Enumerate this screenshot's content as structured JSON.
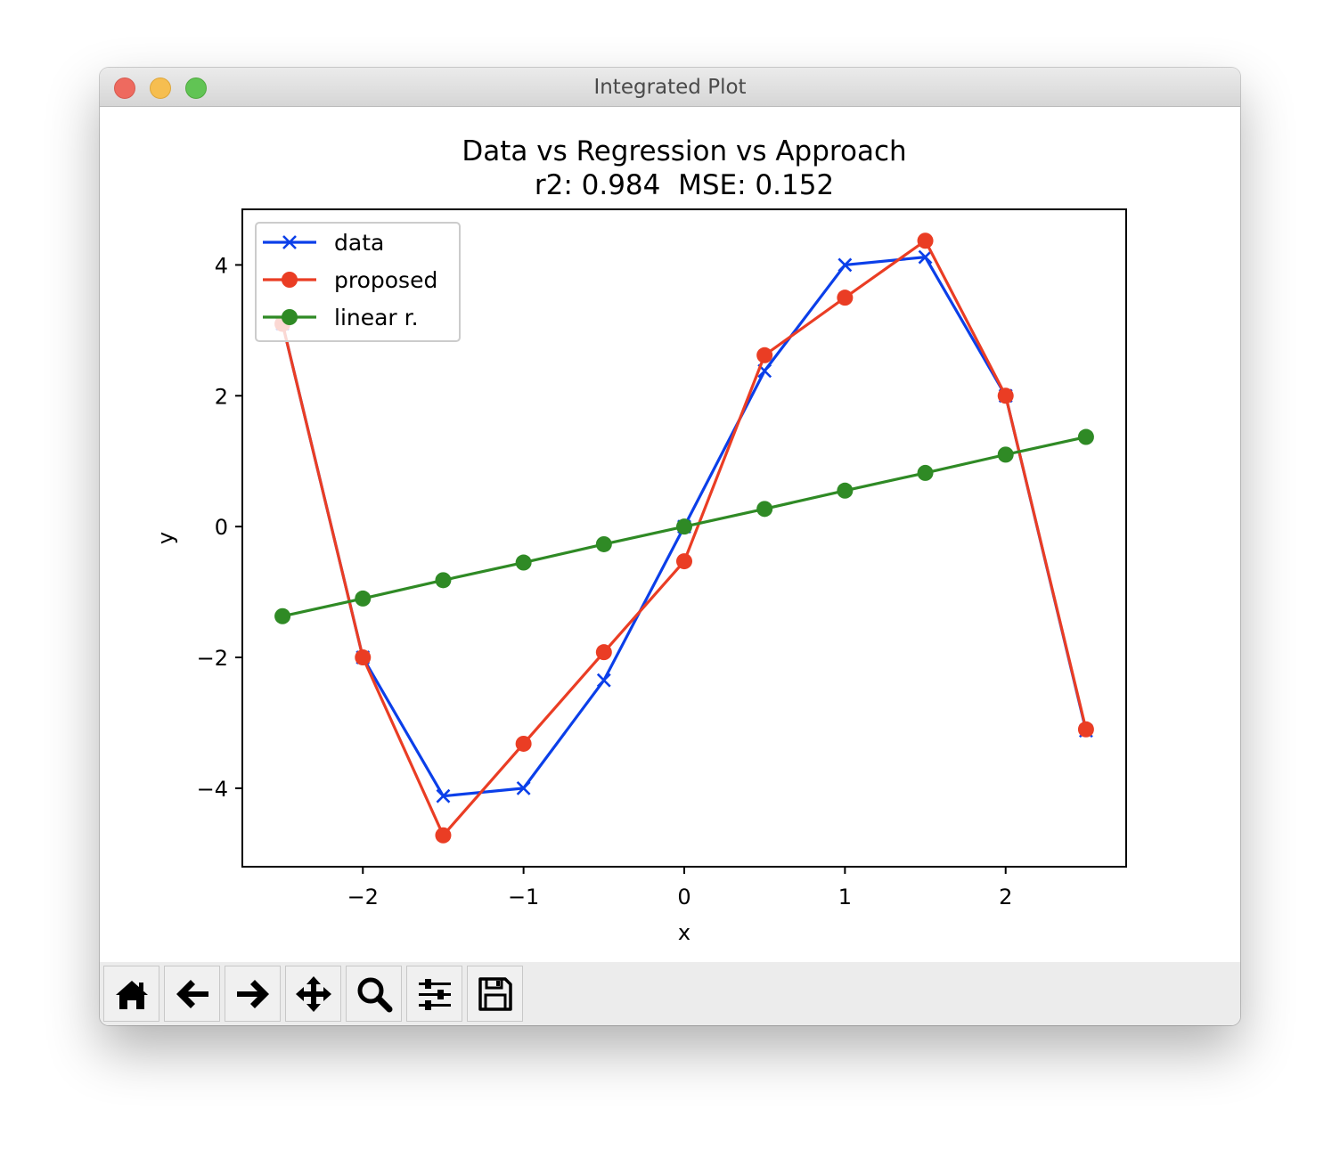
{
  "window": {
    "title": "Integrated Plot"
  },
  "toolbar": {
    "buttons": [
      {
        "icon": "home-icon"
      },
      {
        "icon": "arrow-left-icon"
      },
      {
        "icon": "arrow-right-icon"
      },
      {
        "icon": "move-icon"
      },
      {
        "icon": "zoom-icon"
      },
      {
        "icon": "sliders-icon"
      },
      {
        "icon": "save-icon"
      }
    ]
  },
  "chart_data": {
    "type": "line",
    "title": "Data vs Regression vs Approach",
    "subtitle": "r2: 0.984  MSE: 0.152",
    "xlabel": "x",
    "ylabel": "y",
    "xlim": [
      -2.75,
      2.75
    ],
    "ylim": [
      -5.2,
      4.85
    ],
    "xticks": [
      -2,
      -1,
      0,
      1,
      2
    ],
    "xtick_labels": [
      "−2",
      "−1",
      "0",
      "1",
      "2"
    ],
    "yticks": [
      -4,
      -2,
      0,
      2,
      4
    ],
    "ytick_labels": [
      "−4",
      "−2",
      "0",
      "2",
      "4"
    ],
    "grid": false,
    "legend_position": "upper-left",
    "x": [
      -2.5,
      -2.0,
      -1.5,
      -1.0,
      -0.5,
      0.0,
      0.5,
      1.0,
      1.5,
      2.0,
      2.5
    ],
    "series": [
      {
        "name": "data",
        "color": "#0b3fe9",
        "marker": "x",
        "values": [
          3.1,
          -2.0,
          -4.12,
          -4.0,
          -2.35,
          0.0,
          2.38,
          4.0,
          4.12,
          2.0,
          -3.12
        ]
      },
      {
        "name": "proposed",
        "color": "#ea3d24",
        "marker": "o",
        "values": [
          3.1,
          -2.0,
          -4.72,
          -3.32,
          -1.92,
          -0.53,
          2.62,
          3.5,
          4.37,
          2.0,
          -3.1
        ]
      },
      {
        "name": "linear r.",
        "color": "#2f8a25",
        "marker": "o",
        "values": [
          -1.37,
          -1.1,
          -0.82,
          -0.55,
          -0.27,
          0.0,
          0.27,
          0.55,
          0.82,
          1.1,
          1.37
        ]
      }
    ]
  }
}
